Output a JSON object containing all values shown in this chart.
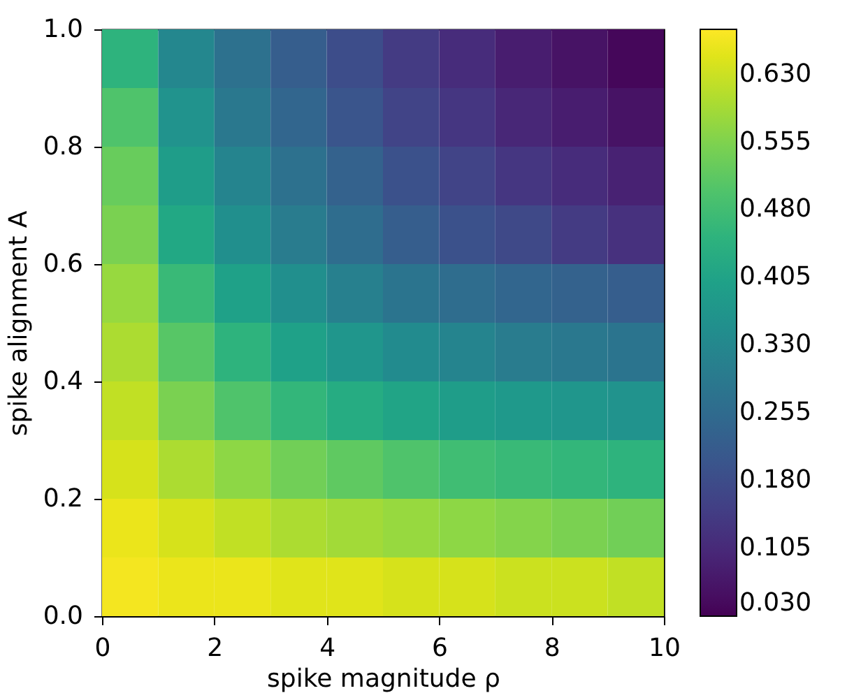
{
  "chart_data": {
    "type": "heatmap",
    "xlabel": "spike magnitude ρ",
    "ylabel": "spike alignment A",
    "x": [
      0.5,
      1.5,
      2.5,
      3.5,
      4.5,
      5.5,
      6.5,
      7.5,
      8.5,
      9.5
    ],
    "y": [
      0.95,
      0.85,
      0.75,
      0.65,
      0.55,
      0.45,
      0.35,
      0.25,
      0.15,
      0.05
    ],
    "xlim": [
      0,
      10
    ],
    "xticks": [
      0,
      2,
      4,
      6,
      8,
      10
    ],
    "ylim": [
      0,
      1.0
    ],
    "yticks": [
      {
        "value": 0,
        "label": "0.0"
      },
      {
        "value": 0.2,
        "label": "0.2"
      },
      {
        "value": 0.4,
        "label": "0.4"
      },
      {
        "value": 0.6,
        "label": "0.6"
      },
      {
        "value": 0.8,
        "label": "0.8"
      },
      {
        "value": 1.0,
        "label": "1.0"
      }
    ],
    "clim": [
      0.03,
      0.68
    ],
    "cticks": [
      {
        "value": 0.03,
        "label": "0.030"
      },
      {
        "value": 0.105,
        "label": "0.105"
      },
      {
        "value": 0.18,
        "label": "0.180"
      },
      {
        "value": 0.255,
        "label": "0.255"
      },
      {
        "value": 0.33,
        "label": "0.330"
      },
      {
        "value": 0.405,
        "label": "0.405"
      },
      {
        "value": 0.48,
        "label": "0.480"
      },
      {
        "value": 0.555,
        "label": "0.555"
      },
      {
        "value": 0.63,
        "label": "0.630"
      }
    ],
    "cells": [
      [
        0.45,
        0.33,
        0.27,
        0.22,
        0.18,
        0.14,
        0.11,
        0.08,
        0.06,
        0.04
      ],
      [
        0.5,
        0.36,
        0.29,
        0.24,
        0.2,
        0.16,
        0.13,
        0.1,
        0.08,
        0.06
      ],
      [
        0.53,
        0.39,
        0.32,
        0.27,
        0.23,
        0.19,
        0.16,
        0.13,
        0.11,
        0.09
      ],
      [
        0.55,
        0.42,
        0.35,
        0.3,
        0.26,
        0.22,
        0.19,
        0.17,
        0.14,
        0.12
      ],
      [
        0.58,
        0.47,
        0.4,
        0.35,
        0.31,
        0.28,
        0.26,
        0.24,
        0.23,
        0.22
      ],
      [
        0.6,
        0.51,
        0.45,
        0.4,
        0.37,
        0.34,
        0.32,
        0.3,
        0.29,
        0.28
      ],
      [
        0.62,
        0.55,
        0.5,
        0.46,
        0.43,
        0.41,
        0.39,
        0.38,
        0.37,
        0.36
      ],
      [
        0.64,
        0.6,
        0.57,
        0.54,
        0.52,
        0.5,
        0.48,
        0.47,
        0.46,
        0.45
      ],
      [
        0.66,
        0.64,
        0.62,
        0.6,
        0.59,
        0.58,
        0.57,
        0.56,
        0.55,
        0.54
      ],
      [
        0.67,
        0.66,
        0.66,
        0.65,
        0.65,
        0.64,
        0.64,
        0.63,
        0.63,
        0.62
      ]
    ]
  }
}
